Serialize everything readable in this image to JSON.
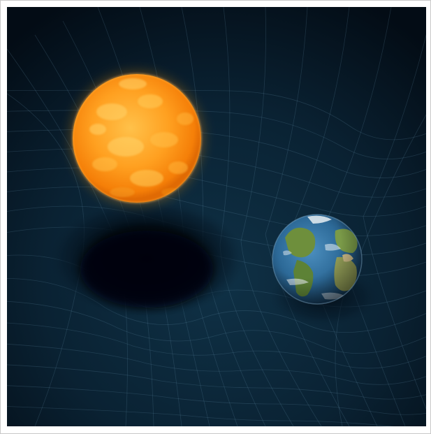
{
  "image": {
    "description_tags": [
      "sun-icon",
      "earth-icon",
      "spacetime-grid"
    ],
    "colors": {
      "space_dark": "#020a12",
      "space_mid": "#0b2536",
      "grid_line": "#5f8ea8",
      "sun_core": "#ffb23a",
      "sun_edge": "#f07a06",
      "earth_ocean": "#2f6f9e",
      "earth_land": "#5f8a3a",
      "earth_cloud": "#e8eef2"
    }
  }
}
